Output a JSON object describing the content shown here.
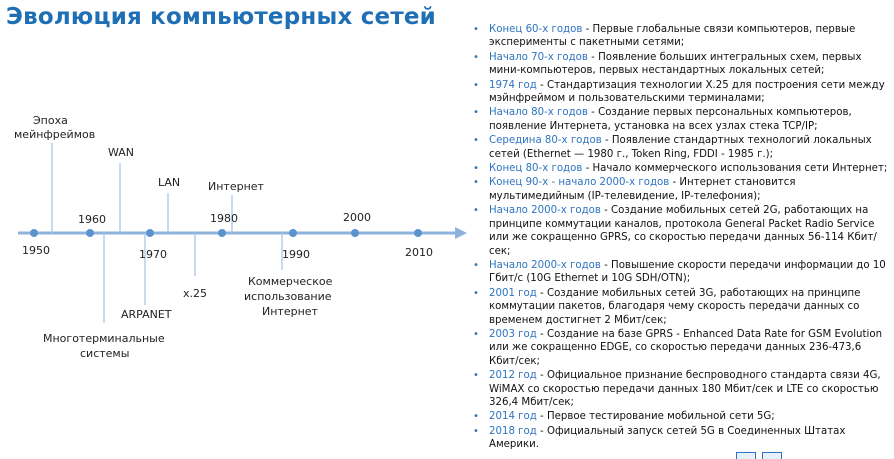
{
  "title": "Эволюция компьютерных сетей",
  "timeline": {
    "years": [
      "1950",
      "1960",
      "1970",
      "1980",
      "1990",
      "2000",
      "2010"
    ],
    "labels": {
      "mainframes": [
        "Эпоха",
        "мейнфреймов"
      ],
      "wan": [
        "WAN"
      ],
      "lan": [
        "LAN"
      ],
      "internet": [
        "Интернет"
      ],
      "multiterminal": [
        "Многотерминальные",
        "системы"
      ],
      "arpanet": [
        "ARPANET"
      ],
      "x25": [
        "x.25"
      ],
      "commercial": [
        "Коммерческое",
        "использование",
        "Интернет"
      ]
    }
  },
  "events": [
    {
      "date": "Конец 60-х годов",
      "text": " - Первые глобальные связи компьютеров, первые эксперименты с пакетными сетями;"
    },
    {
      "date": "Начало 70-х годов",
      "text": " - Появление больших интегральных схем, первых мини-компьютеров, первых нестандартных локальных сетей;"
    },
    {
      "date": "1974 год",
      "text": " - Стандартизация технологии X.25 для построения сети между мэйнфреймом и пользовательскими терминалами;"
    },
    {
      "date": "Начало 80-х годов",
      "text": " - Создание первых персональных компьютеров, появление Интернета, установка на всех узлах стека TCP/IP;"
    },
    {
      "date": "Середина 80-х годов",
      "text": " - Появление стандартных технологий локальных сетей (Ethernet — 1980 г., Token Ring, FDDI - 1985 г.);"
    },
    {
      "date": "Конец 80-х годов",
      "text": " - Начало коммерческого использования сети Интернет;"
    },
    {
      "date": "Конец 90-х - начало 2000-х годов",
      "text": " - Интернет становится мультимедийным (IP-телевидение, IP-телефония);"
    },
    {
      "date": "Начало 2000-х годов",
      "text": " - Создание мобильных сетей 2G, работающих на принципе коммутации каналов, протокола General Packet Radio Service или же сокращенно GPRS, со скоростью передачи данных 56-114 Кбит/сек;"
    },
    {
      "date": "Начало 2000-х годов",
      "text": " - Повышение скорости передачи информации до 10 Гбит/с (10G Ethernet и 10G SDH/OTN);"
    },
    {
      "date": "2001 год",
      "text": " - Создание мобильных сетей 3G, работающих на принципе коммутации пакетов, благодаря чему скорость передачи данных со временем достигнет 2 Мбит/сек;"
    },
    {
      "date": "2003 год",
      "text": " - Создание на базе GPRS - Enhanced Data Rate for GSM Evolution или же сокращенно EDGE, со скоростью передачи данных 236-473,6 Кбит/сек;"
    },
    {
      "date": "2012 год",
      "text": " - Официальное признание беспроводного стандарта связи 4G, WiMAX со скоростью передачи данных 180 Мбит/сек и LTE со скоростью 326,4 Мбит/сек;"
    },
    {
      "date": "2014 год",
      "text": " - Первое тестирование мобильной сети 5G;"
    },
    {
      "date": "2018 год",
      "text": " - Официальный запуск сетей 5G в Соединенных Штатах Америки."
    }
  ],
  "colors": {
    "accent": "#2e74c0",
    "title": "#1f6fb5",
    "line": "#8db3dd"
  }
}
